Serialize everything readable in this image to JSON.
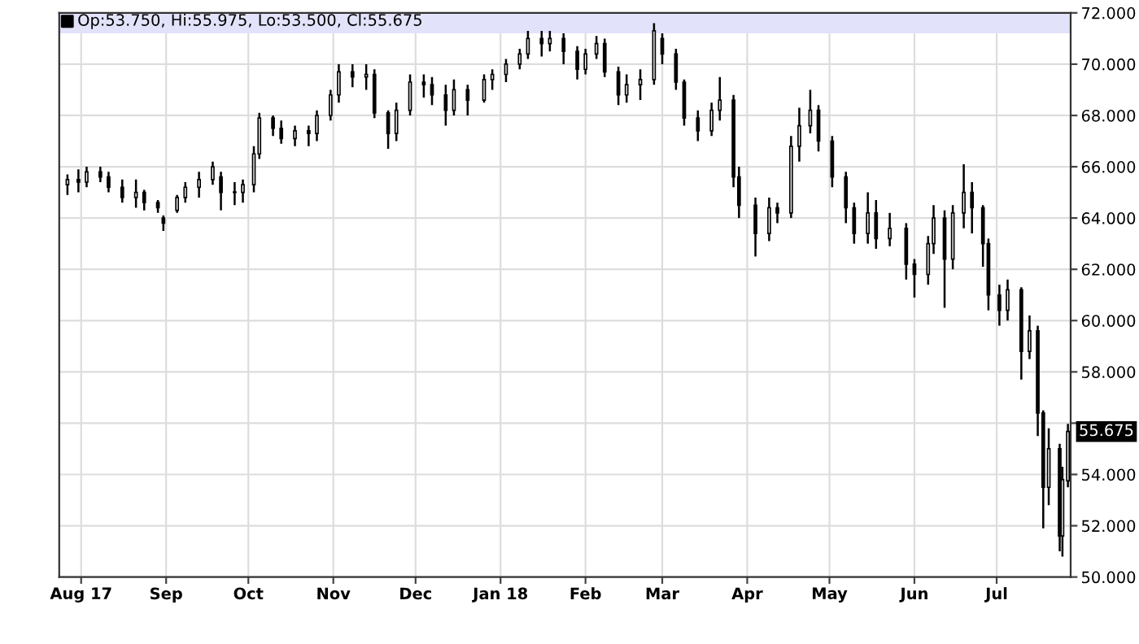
{
  "chart_data": {
    "type": "candlestick",
    "annotations": [
      "Op:53.750, Hi:55.975, Lo:53.500, Cl:55.675",
      {
        "text": "55.675",
        "x": "2018-07-27",
        "y": 55.675
      }
    ],
    "color": "#000000",
    "x": [
      "2017-07-27",
      "2017-07-31",
      "2017-08-03",
      "2017-08-08",
      "2017-08-11",
      "2017-08-16",
      "2017-08-21",
      "2017-08-24",
      "2017-08-29",
      "2017-08-31",
      "2017-09-05",
      "2017-09-08",
      "2017-09-13",
      "2017-09-18",
      "2017-09-21",
      "2017-09-26",
      "2017-09-29",
      "2017-10-03",
      "2017-10-05",
      "2017-10-10",
      "2017-10-13",
      "2017-10-18",
      "2017-10-23",
      "2017-10-26",
      "2017-10-31",
      "2017-11-03",
      "2017-11-08",
      "2017-11-13",
      "2017-11-16",
      "2017-11-21",
      "2017-11-24",
      "2017-11-29",
      "2017-12-04",
      "2017-12-07",
      "2017-12-12",
      "2017-12-15",
      "2017-12-20",
      "2017-12-26",
      "2017-12-29",
      "2018-01-03",
      "2018-01-08",
      "2018-01-11",
      "2018-01-16",
      "2018-01-19",
      "2018-01-24",
      "2018-01-29",
      "2018-02-01",
      "2018-02-05",
      "2018-02-08",
      "2018-02-13",
      "2018-02-16",
      "2018-02-21",
      "2018-02-26",
      "2018-03-01",
      "2018-03-06",
      "2018-03-09",
      "2018-03-14",
      "2018-03-19",
      "2018-03-22",
      "2018-03-27",
      "2018-03-29",
      "2018-04-04",
      "2018-04-09",
      "2018-04-12",
      "2018-04-17",
      "2018-04-20",
      "2018-04-24",
      "2018-04-27",
      "2018-05-02",
      "2018-05-07",
      "2018-05-10",
      "2018-05-15",
      "2018-05-18",
      "2018-05-23",
      "2018-05-29",
      "2018-06-01",
      "2018-06-06",
      "2018-06-08",
      "2018-06-12",
      "2018-06-15",
      "2018-06-19",
      "2018-06-22",
      "2018-06-26",
      "2018-06-28",
      "2018-07-02",
      "2018-07-05",
      "2018-07-10",
      "2018-07-13",
      "2018-07-16",
      "2018-07-18",
      "2018-07-20",
      "2018-07-24",
      "2018-07-25",
      "2018-07-27"
    ],
    "ohlc": [
      [
        65.3,
        65.7,
        64.9,
        65.5
      ],
      [
        65.5,
        65.9,
        65.0,
        65.4
      ],
      [
        65.4,
        66.0,
        65.2,
        65.8
      ],
      [
        65.8,
        66.0,
        65.4,
        65.6
      ],
      [
        65.6,
        65.8,
        65.0,
        65.2
      ],
      [
        65.2,
        65.5,
        64.6,
        64.8
      ],
      [
        64.8,
        65.5,
        64.4,
        65.0
      ],
      [
        65.0,
        65.1,
        64.3,
        64.6
      ],
      [
        64.6,
        64.7,
        64.2,
        64.4
      ],
      [
        64.0,
        64.1,
        63.5,
        63.8
      ],
      [
        64.3,
        64.9,
        64.2,
        64.8
      ],
      [
        64.8,
        65.4,
        64.6,
        65.2
      ],
      [
        65.2,
        65.8,
        64.8,
        65.5
      ],
      [
        65.5,
        66.2,
        65.3,
        66.0
      ],
      [
        65.6,
        65.8,
        64.3,
        65.0
      ],
      [
        65.0,
        65.4,
        64.5,
        65.0
      ],
      [
        65.0,
        65.5,
        64.6,
        65.3
      ],
      [
        65.3,
        66.8,
        65.0,
        66.5
      ],
      [
        66.5,
        68.1,
        66.3,
        67.9
      ],
      [
        67.9,
        68.0,
        67.2,
        67.5
      ],
      [
        67.5,
        67.8,
        66.9,
        67.1
      ],
      [
        67.1,
        67.6,
        66.8,
        67.4
      ],
      [
        67.4,
        67.6,
        66.8,
        67.3
      ],
      [
        67.3,
        68.2,
        67.0,
        68.0
      ],
      [
        68.0,
        69.0,
        67.8,
        68.8
      ],
      [
        68.8,
        70.0,
        68.5,
        69.7
      ],
      [
        69.7,
        70.0,
        69.1,
        69.5
      ],
      [
        69.5,
        70.0,
        69.0,
        69.6
      ],
      [
        69.6,
        69.8,
        67.9,
        68.1
      ],
      [
        68.1,
        68.2,
        66.7,
        67.3
      ],
      [
        67.3,
        68.5,
        67.0,
        68.2
      ],
      [
        68.2,
        69.6,
        68.0,
        69.3
      ],
      [
        69.3,
        69.6,
        68.7,
        69.2
      ],
      [
        69.2,
        69.5,
        68.4,
        68.8
      ],
      [
        68.8,
        69.2,
        67.6,
        68.2
      ],
      [
        68.2,
        69.4,
        68.0,
        69.0
      ],
      [
        69.0,
        69.2,
        68.0,
        68.6
      ],
      [
        68.6,
        69.6,
        68.5,
        69.4
      ],
      [
        69.4,
        69.8,
        69.0,
        69.6
      ],
      [
        69.6,
        70.2,
        69.3,
        70.0
      ],
      [
        70.0,
        70.6,
        69.8,
        70.4
      ],
      [
        70.4,
        71.3,
        70.2,
        71.0
      ],
      [
        71.0,
        71.3,
        70.3,
        70.8
      ],
      [
        70.8,
        71.3,
        70.5,
        71.0
      ],
      [
        71.0,
        71.2,
        70.0,
        70.5
      ],
      [
        70.5,
        70.7,
        69.4,
        69.8
      ],
      [
        69.8,
        70.6,
        69.6,
        70.4
      ],
      [
        70.4,
        71.1,
        70.2,
        70.8
      ],
      [
        70.8,
        71.0,
        69.5,
        69.7
      ],
      [
        69.7,
        69.9,
        68.4,
        68.8
      ],
      [
        68.8,
        69.6,
        68.5,
        69.2
      ],
      [
        69.2,
        69.8,
        68.6,
        69.4
      ],
      [
        69.4,
        71.6,
        69.2,
        71.3
      ],
      [
        71.0,
        71.2,
        70.0,
        70.4
      ],
      [
        70.4,
        70.6,
        69.0,
        69.3
      ],
      [
        69.3,
        69.4,
        67.6,
        67.9
      ],
      [
        67.9,
        68.2,
        67.0,
        67.4
      ],
      [
        67.4,
        68.5,
        67.2,
        68.2
      ],
      [
        68.2,
        69.5,
        67.8,
        68.6
      ],
      [
        68.6,
        68.8,
        65.2,
        65.6
      ],
      [
        65.6,
        66.0,
        64.0,
        64.5
      ],
      [
        64.5,
        64.8,
        62.5,
        63.4
      ],
      [
        63.4,
        64.8,
        63.1,
        64.4
      ],
      [
        64.4,
        64.6,
        63.8,
        64.2
      ],
      [
        64.2,
        67.2,
        64.0,
        66.8
      ],
      [
        66.8,
        68.3,
        66.2,
        67.6
      ],
      [
        67.6,
        69.0,
        67.3,
        68.2
      ],
      [
        68.2,
        68.4,
        66.6,
        67.0
      ],
      [
        67.0,
        67.2,
        65.2,
        65.6
      ],
      [
        65.6,
        65.8,
        63.8,
        64.4
      ],
      [
        64.4,
        64.6,
        63.0,
        63.4
      ],
      [
        63.4,
        65.0,
        63.0,
        64.2
      ],
      [
        64.2,
        64.7,
        62.8,
        63.2
      ],
      [
        63.2,
        64.2,
        62.9,
        63.6
      ],
      [
        63.6,
        63.8,
        61.6,
        62.2
      ],
      [
        62.2,
        62.4,
        60.9,
        61.8
      ],
      [
        61.8,
        63.3,
        61.4,
        63.0
      ],
      [
        63.0,
        64.5,
        62.6,
        64.0
      ],
      [
        64.0,
        64.3,
        60.5,
        62.4
      ],
      [
        62.4,
        64.5,
        62.0,
        64.2
      ],
      [
        64.2,
        66.1,
        63.6,
        65.0
      ],
      [
        65.0,
        65.4,
        63.4,
        64.4
      ],
      [
        64.4,
        64.5,
        62.1,
        63.0
      ],
      [
        63.0,
        63.2,
        60.4,
        61.0
      ],
      [
        61.0,
        61.4,
        59.8,
        60.4
      ],
      [
        60.4,
        61.6,
        60.0,
        61.2
      ],
      [
        61.2,
        61.3,
        57.7,
        58.8
      ],
      [
        58.8,
        60.2,
        58.5,
        59.6
      ],
      [
        59.6,
        59.8,
        55.5,
        56.4
      ],
      [
        56.4,
        56.5,
        51.9,
        53.5
      ],
      [
        53.5,
        55.8,
        52.8,
        55.0
      ],
      [
        55.0,
        55.2,
        51.0,
        51.6
      ],
      [
        51.6,
        54.3,
        50.8,
        53.8
      ],
      [
        53.75,
        55.975,
        53.5,
        55.675
      ]
    ],
    "xlim": [
      "2017-07-24",
      "2018-07-28"
    ],
    "xticks": [
      {
        "value": "2017-08-01",
        "label": "Aug 17"
      },
      {
        "value": "2017-09-01",
        "label": "Sep"
      },
      {
        "value": "2017-10-01",
        "label": "Oct"
      },
      {
        "value": "2017-11-01",
        "label": "Nov"
      },
      {
        "value": "2017-12-01",
        "label": "Dec"
      },
      {
        "value": "2018-01-01",
        "label": "Jan 18"
      },
      {
        "value": "2018-02-01",
        "label": "Feb"
      },
      {
        "value": "2018-03-01",
        "label": "Mar"
      },
      {
        "value": "2018-04-01",
        "label": "Apr"
      },
      {
        "value": "2018-05-01",
        "label": "May"
      },
      {
        "value": "2018-06-01",
        "label": "Jun"
      },
      {
        "value": "2018-07-01",
        "label": "Jul"
      }
    ],
    "ylim": [
      50,
      72
    ],
    "yticks": [
      {
        "value": 50,
        "label": "50.000"
      },
      {
        "value": 52,
        "label": "52.000"
      },
      {
        "value": 54,
        "label": "54.000"
      },
      {
        "value": 56,
        "label": null
      },
      {
        "value": 58,
        "label": "58.000"
      },
      {
        "value": 60,
        "label": "60.000"
      },
      {
        "value": 62,
        "label": "62.000"
      },
      {
        "value": 64,
        "label": "64.000"
      },
      {
        "value": 66,
        "label": "66.000"
      },
      {
        "value": 68,
        "label": "68.000"
      },
      {
        "value": 70,
        "label": "70.000"
      },
      {
        "value": 72,
        "label": "72.000"
      }
    ],
    "bands": [
      {
        "axis": "y",
        "from": 71.2,
        "to": 72,
        "color": "#e2e2fa"
      }
    ],
    "grid": true
  }
}
